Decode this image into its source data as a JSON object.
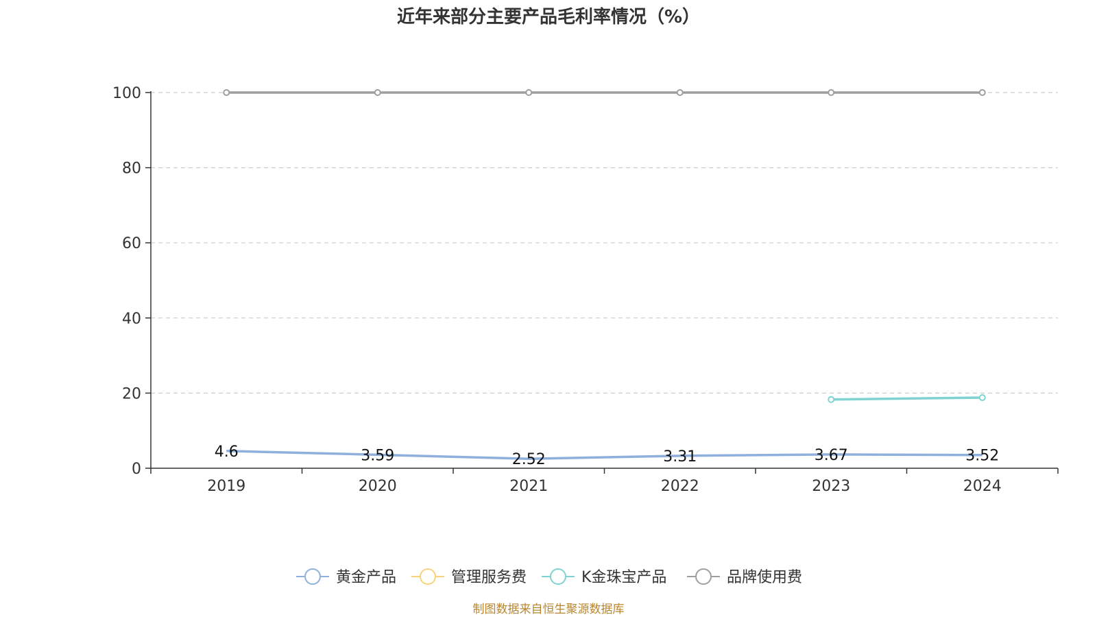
{
  "chart_data": {
    "type": "line",
    "title": "近年来部分主要产品毛利率情况（%）",
    "xlabel": "",
    "ylabel": "",
    "categories": [
      "2019",
      "2020",
      "2021",
      "2022",
      "2023",
      "2024"
    ],
    "ylim": [
      0,
      100
    ],
    "yticks": [
      "0",
      "20",
      "40",
      "60",
      "80",
      "100"
    ],
    "grid": "horizontal-dashed",
    "legend_position": "bottom-center",
    "series": [
      {
        "name": "黄金产品",
        "color": "#8fb0dc",
        "values": [
          4.6,
          3.59,
          2.52,
          3.31,
          3.67,
          3.52
        ],
        "labels": [
          "4.6",
          "3.59",
          "2.52",
          "3.31",
          "3.67",
          "3.52"
        ]
      },
      {
        "name": "管理服务费",
        "color": "#f9d37a",
        "values": [
          null,
          null,
          null,
          null,
          null,
          null
        ],
        "labels": []
      },
      {
        "name": "K金珠宝产品",
        "color": "#7fd3d1",
        "values": [
          null,
          null,
          null,
          null,
          18.3,
          18.8
        ],
        "labels": []
      },
      {
        "name": "品牌使用费",
        "color": "#9e9e9e",
        "values": [
          100,
          100,
          100,
          100,
          100,
          100
        ],
        "labels": []
      }
    ],
    "source": "制图数据来自恒生聚源数据库"
  }
}
